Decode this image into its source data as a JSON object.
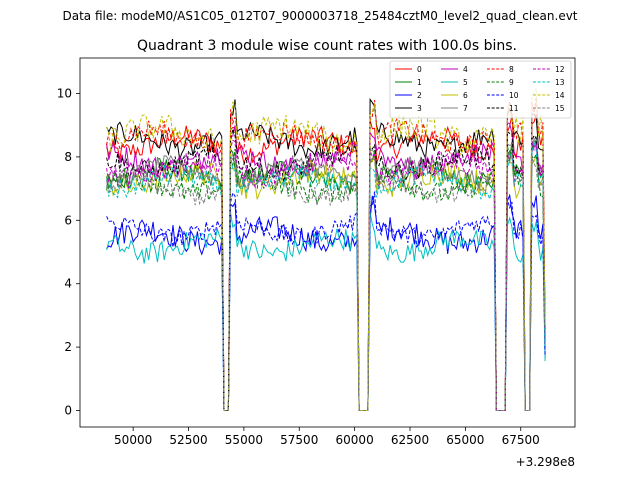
{
  "chart_data": {
    "type": "line",
    "suptitle": "Data file: modeM0/AS1C05_012T07_9000003718_25484cztM0_level2_quad_clean.evt",
    "title": "Quadrant 3 module wise count rates with 100.0s bins.",
    "xlabel": "",
    "ylabel": "",
    "x_offset_label": "+3.298e8",
    "xlim": [
      47600,
      69950
    ],
    "ylim": [
      -0.52,
      11.12
    ],
    "xticks": [
      50000,
      52500,
      55000,
      57500,
      60000,
      62500,
      65000,
      67500
    ],
    "xtick_labels": [
      "50000",
      "52500",
      "55000",
      "57500",
      "60000",
      "62500",
      "65000",
      "67500"
    ],
    "yticks": [
      0,
      2,
      4,
      6,
      8,
      10
    ],
    "ytick_labels": [
      "0",
      "2",
      "4",
      "6",
      "8",
      "10"
    ],
    "x_start": 48800,
    "x_end": 68600,
    "bin": 100,
    "gaps": [
      [
        54000,
        54400
      ],
      [
        60100,
        60700
      ],
      [
        66300,
        66900
      ],
      [
        67600,
        68000
      ]
    ],
    "legend_position": "top-right",
    "series": [
      {
        "name": "0",
        "color": "#ff0000",
        "dash": false,
        "mean": 8.4,
        "noise": 0.35
      },
      {
        "name": "1",
        "color": "#008000",
        "dash": false,
        "mean": 7.4,
        "noise": 0.35
      },
      {
        "name": "2",
        "color": "#0000ff",
        "dash": false,
        "mean": 5.5,
        "noise": 0.4
      },
      {
        "name": "3",
        "color": "#000000",
        "dash": false,
        "mean": 8.5,
        "noise": 0.35
      },
      {
        "name": "4",
        "color": "#bf00bf",
        "dash": false,
        "mean": 7.9,
        "noise": 0.35
      },
      {
        "name": "5",
        "color": "#00bfbf",
        "dash": false,
        "mean": 5.2,
        "noise": 0.35
      },
      {
        "name": "6",
        "color": "#bfbf00",
        "dash": false,
        "mean": 7.3,
        "noise": 0.4
      },
      {
        "name": "7",
        "color": "#808080",
        "dash": false,
        "mean": 7.5,
        "noise": 0.3
      },
      {
        "name": "8",
        "color": "#ff0000",
        "dash": true,
        "mean": 8.6,
        "noise": 0.35
      },
      {
        "name": "9",
        "color": "#008000",
        "dash": true,
        "mean": 7.1,
        "noise": 0.35
      },
      {
        "name": "10",
        "color": "#0000ff",
        "dash": true,
        "mean": 5.7,
        "noise": 0.3
      },
      {
        "name": "11",
        "color": "#000000",
        "dash": true,
        "mean": 7.8,
        "noise": 0.35
      },
      {
        "name": "12",
        "color": "#bf00bf",
        "dash": true,
        "mean": 7.6,
        "noise": 0.35
      },
      {
        "name": "13",
        "color": "#00bfbf",
        "dash": true,
        "mean": 7.2,
        "noise": 0.35
      },
      {
        "name": "14",
        "color": "#bfbf00",
        "dash": true,
        "mean": 8.7,
        "noise": 0.45
      },
      {
        "name": "15",
        "color": "#808080",
        "dash": true,
        "mean": 7.0,
        "noise": 0.3
      }
    ]
  }
}
